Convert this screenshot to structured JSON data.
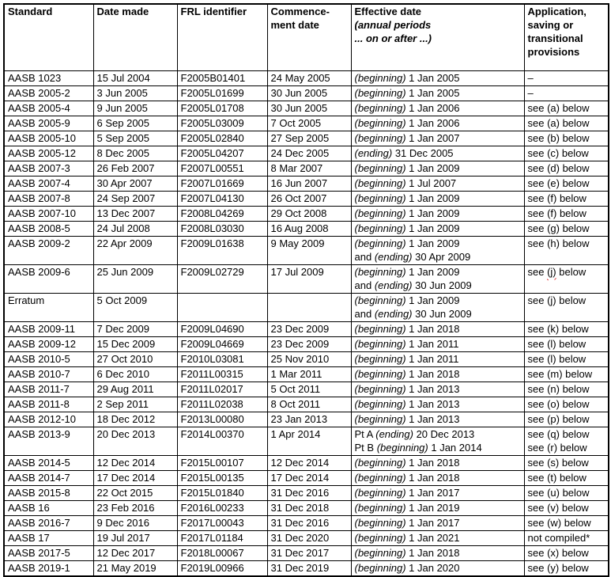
{
  "table": {
    "header": {
      "standard": "Standard",
      "date_made": "Date made",
      "frl": "FRL identifier",
      "commencement_line1": "Commence-",
      "commencement_line2": "ment date",
      "effective_title": "Effective date",
      "effective_sub1": "(annual periods",
      "effective_sub2": "... on or after ...)",
      "application": "Application, saving or transitional provisions"
    },
    "rows": [
      {
        "standard": "AASB 1023",
        "date_made": "15 Jul 2004",
        "frl": "F2005B01401",
        "commencement": "24 May 2005",
        "effective": [
          [
            {
              "t": "(beginning)",
              "i": true
            },
            {
              "t": " 1 Jan 2005"
            }
          ]
        ],
        "application": [
          [
            {
              "t": "–"
            }
          ]
        ]
      },
      {
        "standard": "AASB 2005-2",
        "date_made": "3 Jun 2005",
        "frl": "F2005L01699",
        "commencement": "30 Jun 2005",
        "effective": [
          [
            {
              "t": "(beginning)",
              "i": true
            },
            {
              "t": " 1 Jan 2005"
            }
          ]
        ],
        "application": [
          [
            {
              "t": "–"
            }
          ]
        ]
      },
      {
        "standard": "AASB 2005-4",
        "date_made": "9 Jun 2005",
        "frl": "F2005L01708",
        "commencement": "30 Jun 2005",
        "effective": [
          [
            {
              "t": "(beginning)",
              "i": true
            },
            {
              "t": " 1 Jan 2006"
            }
          ]
        ],
        "application": [
          [
            {
              "t": "see (a) below"
            }
          ]
        ]
      },
      {
        "standard": "AASB 2005-9",
        "date_made": "6 Sep 2005",
        "frl": "F2005L03009",
        "commencement": "7 Oct 2005",
        "effective": [
          [
            {
              "t": "(beginning)",
              "i": true
            },
            {
              "t": " 1 Jan 2006"
            }
          ]
        ],
        "application": [
          [
            {
              "t": "see (a) below"
            }
          ]
        ]
      },
      {
        "standard": "AASB 2005-10",
        "date_made": "5 Sep 2005",
        "frl": "F2005L02840",
        "commencement": "27 Sep 2005",
        "effective": [
          [
            {
              "t": "(beginning)",
              "i": true
            },
            {
              "t": " 1 Jan 2007"
            }
          ]
        ],
        "application": [
          [
            {
              "t": "see (b) below"
            }
          ]
        ]
      },
      {
        "standard": "AASB 2005-12",
        "date_made": "8 Dec 2005",
        "frl": "F2005L04207",
        "commencement": "24 Dec 2005",
        "effective": [
          [
            {
              "t": "(ending)",
              "i": true
            },
            {
              "t": " 31 Dec 2005"
            }
          ]
        ],
        "application": [
          [
            {
              "t": "see (c) below"
            }
          ]
        ]
      },
      {
        "standard": "AASB 2007-3",
        "date_made": "26 Feb 2007",
        "frl": "F2007L00551",
        "commencement": "8 Mar 2007",
        "effective": [
          [
            {
              "t": "(beginning)",
              "i": true
            },
            {
              "t": " 1 Jan 2009"
            }
          ]
        ],
        "application": [
          [
            {
              "t": "see (d) below"
            }
          ]
        ]
      },
      {
        "standard": "AASB 2007-4",
        "date_made": "30 Apr 2007",
        "frl": "F2007L01669",
        "commencement": "16 Jun 2007",
        "effective": [
          [
            {
              "t": "(beginning)",
              "i": true
            },
            {
              "t": " 1 Jul 2007"
            }
          ]
        ],
        "application": [
          [
            {
              "t": "see (e) below"
            }
          ]
        ]
      },
      {
        "standard": "AASB 2007-8",
        "date_made": "24 Sep 2007",
        "frl": "F2007L04130",
        "commencement": "26 Oct 2007",
        "effective": [
          [
            {
              "t": "(beginning)",
              "i": true
            },
            {
              "t": " 1 Jan 2009"
            }
          ]
        ],
        "application": [
          [
            {
              "t": "see (f) below"
            }
          ]
        ]
      },
      {
        "standard": "AASB 2007-10",
        "date_made": "13 Dec 2007",
        "frl": "F2008L04269",
        "commencement": "29 Oct 2008",
        "effective": [
          [
            {
              "t": "(beginning)",
              "i": true
            },
            {
              "t": " 1 Jan 2009"
            }
          ]
        ],
        "application": [
          [
            {
              "t": "see (f) below"
            }
          ]
        ]
      },
      {
        "standard": "AASB 2008-5",
        "date_made": "24 Jul 2008",
        "frl": "F2008L03030",
        "commencement": "16 Aug 2008",
        "effective": [
          [
            {
              "t": "(beginning)",
              "i": true
            },
            {
              "t": " 1 Jan 2009"
            }
          ]
        ],
        "application": [
          [
            {
              "t": "see (g) below"
            }
          ]
        ]
      },
      {
        "standard": "AASB 2009-2",
        "date_made": "22 Apr 2009",
        "frl": "F2009L01638",
        "commencement": "9 May 2009",
        "effective": [
          [
            {
              "t": "(beginning)",
              "i": true
            },
            {
              "t": " 1 Jan 2009"
            }
          ],
          [
            {
              "t": "and "
            },
            {
              "t": "(ending)",
              "i": true
            },
            {
              "t": " 30 Apr 2009"
            }
          ]
        ],
        "application": [
          [
            {
              "t": "see (h) below"
            }
          ]
        ]
      },
      {
        "standard": "AASB 2009-6",
        "date_made": "25 Jun 2009",
        "frl": "F2009L02729",
        "commencement": "17 Jul 2009",
        "effective": [
          [
            {
              "t": "(beginning)",
              "i": true
            },
            {
              "t": " 1 Jan 2009"
            }
          ],
          [
            {
              "t": "and "
            },
            {
              "t": "(ending)",
              "i": true
            },
            {
              "t": " 30 Jun 2009"
            }
          ]
        ],
        "application": [
          [
            {
              "t": "see "
            },
            {
              "t": "(j)",
              "sq": true
            },
            {
              "t": " below"
            }
          ]
        ]
      },
      {
        "standard": "Erratum",
        "date_made": "5 Oct 2009",
        "frl": "",
        "commencement": "",
        "effective": [
          [
            {
              "t": "(beginning)",
              "i": true
            },
            {
              "t": " 1 Jan 2009"
            }
          ],
          [
            {
              "t": "and "
            },
            {
              "t": "(ending)",
              "i": true
            },
            {
              "t": " 30 Jun 2009"
            }
          ]
        ],
        "application": [
          [
            {
              "t": "see (j) below"
            }
          ]
        ]
      },
      {
        "standard": "AASB 2009-11",
        "date_made": "7 Dec 2009",
        "frl": "F2009L04690",
        "commencement": "23 Dec 2009",
        "effective": [
          [
            {
              "t": "(beginning)",
              "i": true
            },
            {
              "t": " 1 Jan 2018"
            }
          ]
        ],
        "application": [
          [
            {
              "t": "see (k) below"
            }
          ]
        ]
      },
      {
        "standard": "AASB 2009-12",
        "date_made": "15 Dec 2009",
        "frl": "F2009L04669",
        "commencement": "23 Dec 2009",
        "effective": [
          [
            {
              "t": "(beginning)",
              "i": true
            },
            {
              "t": " 1 Jan 2011"
            }
          ]
        ],
        "application": [
          [
            {
              "t": "see (l) below"
            }
          ]
        ]
      },
      {
        "standard": "AASB 2010-5",
        "date_made": "27 Oct 2010",
        "frl": "F2010L03081",
        "commencement": "25 Nov 2010",
        "effective": [
          [
            {
              "t": "(beginning)",
              "i": true
            },
            {
              "t": " 1 Jan 2011"
            }
          ]
        ],
        "application": [
          [
            {
              "t": "see (l) below"
            }
          ]
        ]
      },
      {
        "standard": "AASB 2010-7",
        "date_made": "6 Dec 2010",
        "frl": "F2011L00315",
        "commencement": "1 Mar 2011",
        "effective": [
          [
            {
              "t": "(beginning)",
              "i": true
            },
            {
              "t": " 1 Jan 2018"
            }
          ]
        ],
        "application": [
          [
            {
              "t": "see (m) below"
            }
          ]
        ]
      },
      {
        "standard": "AASB 2011-7",
        "date_made": "29 Aug 2011",
        "frl": "F2011L02017",
        "commencement": "5 Oct 2011",
        "effective": [
          [
            {
              "t": "(beginning)",
              "i": true
            },
            {
              "t": " 1 Jan 2013"
            }
          ]
        ],
        "application": [
          [
            {
              "t": "see (n) below"
            }
          ]
        ]
      },
      {
        "standard": "AASB 2011-8",
        "date_made": "2 Sep 2011",
        "frl": "F2011L02038",
        "commencement": "8 Oct 2011",
        "effective": [
          [
            {
              "t": "(beginning)",
              "i": true
            },
            {
              "t": " 1 Jan 2013"
            }
          ]
        ],
        "application": [
          [
            {
              "t": "see (o) below"
            }
          ]
        ]
      },
      {
        "standard": "AASB 2012-10",
        "date_made": "18 Dec 2012",
        "frl": "F2013L00080",
        "commencement": "23 Jan 2013",
        "effective": [
          [
            {
              "t": "(beginning)",
              "i": true
            },
            {
              "t": " 1 Jan 2013"
            }
          ]
        ],
        "application": [
          [
            {
              "t": "see (p) below"
            }
          ]
        ]
      },
      {
        "standard": "AASB 2013-9",
        "date_made": "20 Dec 2013",
        "frl": "F2014L00370",
        "commencement": "1 Apr 2014",
        "effective": [
          [
            {
              "t": "Pt A "
            },
            {
              "t": "(ending)",
              "i": true
            },
            {
              "t": " 20 Dec 2013"
            }
          ],
          [
            {
              "t": "Pt B "
            },
            {
              "t": "(beginning)",
              "i": true
            },
            {
              "t": " 1 Jan 2014"
            }
          ]
        ],
        "application": [
          [
            {
              "t": "see (q) below"
            }
          ],
          [
            {
              "t": "see (r) below"
            }
          ]
        ]
      },
      {
        "standard": "AASB 2014-5",
        "date_made": "12 Dec 2014",
        "frl": "F2015L00107",
        "commencement": "12 Dec 2014",
        "effective": [
          [
            {
              "t": "(beginning)",
              "i": true
            },
            {
              "t": " 1 Jan 2018"
            }
          ]
        ],
        "application": [
          [
            {
              "t": "see (s) below"
            }
          ]
        ]
      },
      {
        "standard": "AASB 2014-7",
        "date_made": "17 Dec 2014",
        "frl": "F2015L00135",
        "commencement": "17 Dec 2014",
        "effective": [
          [
            {
              "t": "(beginning)",
              "i": true
            },
            {
              "t": " 1 Jan 2018"
            }
          ]
        ],
        "application": [
          [
            {
              "t": "see (t) below"
            }
          ]
        ]
      },
      {
        "standard": "AASB 2015-8",
        "date_made": "22 Oct 2015",
        "frl": "F2015L01840",
        "commencement": "31 Dec 2016",
        "effective": [
          [
            {
              "t": "(beginning)",
              "i": true
            },
            {
              "t": " 1 Jan 2017"
            }
          ]
        ],
        "application": [
          [
            {
              "t": "see (u) below"
            }
          ]
        ]
      },
      {
        "standard": "AASB 16",
        "date_made": "23 Feb 2016",
        "frl": "F2016L00233",
        "commencement": "31 Dec 2018",
        "effective": [
          [
            {
              "t": "(beginning)",
              "i": true
            },
            {
              "t": " 1 Jan 2019"
            }
          ]
        ],
        "application": [
          [
            {
              "t": "see (v) below"
            }
          ]
        ]
      },
      {
        "standard": "AASB 2016-7",
        "date_made": "9 Dec 2016",
        "frl": "F2017L00043",
        "commencement": "31 Dec 2016",
        "effective": [
          [
            {
              "t": "(beginning)",
              "i": true
            },
            {
              "t": " 1 Jan 2017"
            }
          ]
        ],
        "application": [
          [
            {
              "t": "see (w) below"
            }
          ]
        ]
      },
      {
        "standard": "AASB 17",
        "date_made": "19 Jul 2017",
        "frl": "F2017L01184",
        "commencement": "31 Dec 2020",
        "effective": [
          [
            {
              "t": "(beginning)",
              "i": true
            },
            {
              "t": " 1 Jan 2021"
            }
          ]
        ],
        "application": [
          [
            {
              "t": "not compiled*"
            }
          ]
        ]
      },
      {
        "standard": "AASB 2017-5",
        "date_made": "12 Dec 2017",
        "frl": "F2018L00067",
        "commencement": "31 Dec 2017",
        "effective": [
          [
            {
              "t": "(beginning)",
              "i": true
            },
            {
              "t": " 1 Jan 2018"
            }
          ]
        ],
        "application": [
          [
            {
              "t": "see (x) below"
            }
          ]
        ]
      },
      {
        "standard": "AASB 2019-1",
        "date_made": "21 May 2019",
        "frl": "F2019L00966",
        "commencement": "31 Dec 2019",
        "effective": [
          [
            {
              "t": "(beginning)",
              "i": true
            },
            {
              "t": " 1 Jan 2020"
            }
          ]
        ],
        "application": [
          [
            {
              "t": "see (y) below"
            }
          ]
        ]
      }
    ]
  }
}
